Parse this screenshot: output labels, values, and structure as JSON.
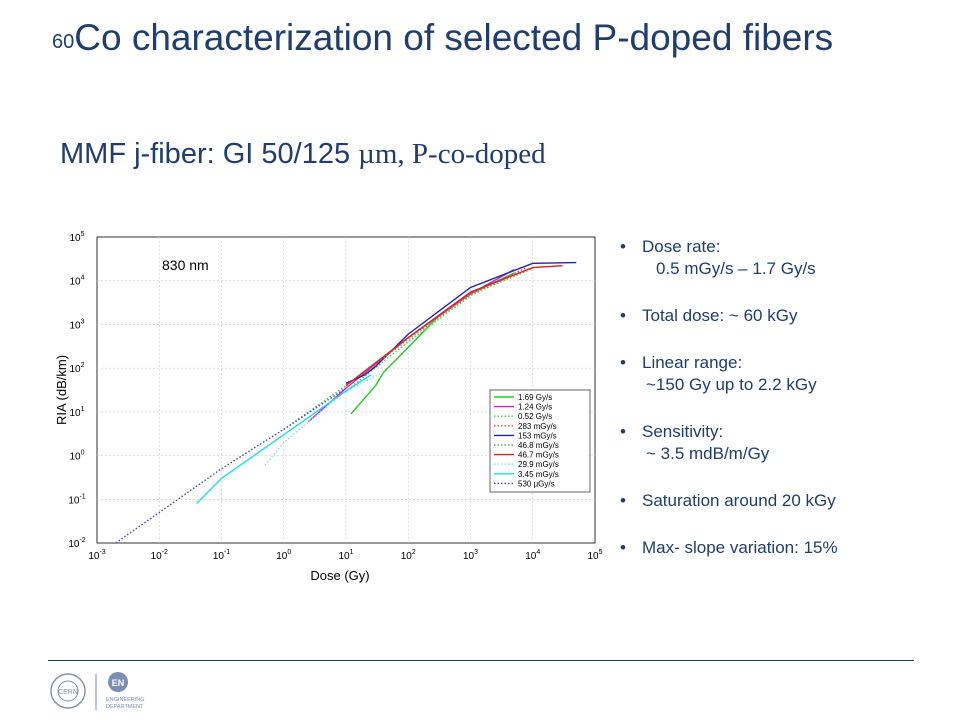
{
  "slide": {
    "title_sup": "60",
    "title_main": "Co characterization of selected P-doped fibers",
    "subtitle_a": "MMF j-fiber: GI 50/125 ",
    "subtitle_b": "µm, P-co-doped"
  },
  "bullets": [
    {
      "label": "Dose rate:",
      "sub": "0.5 mGy/s – 1.7 Gy/s"
    },
    {
      "label": "Total dose: ~ 60 kGy",
      "sub": ""
    },
    {
      "label": "Linear range:",
      "sub": "~150 Gy up to 2.2 kGy"
    },
    {
      "label": "Sensitivity:",
      "sub": "~ 3.5 mdB/m/Gy"
    },
    {
      "label": "Saturation around 20 kGy",
      "sub": ""
    },
    {
      "label": "Max- slope variation: 15%",
      "sub": ""
    }
  ],
  "logos": {
    "cern": "CERN",
    "dept_line1": "ENGINEERING",
    "dept_line2": "DEPARTMENT",
    "en": "EN"
  },
  "chart_data": {
    "type": "line",
    "scale": "log-log",
    "annotation": "830 nm",
    "xlabel": "Dose (Gy)",
    "ylabel": "RIA (dB/km)",
    "xlim_exp": [
      -3,
      5
    ],
    "ylim_exp": [
      -2,
      5
    ],
    "x_ticks": [
      "-3",
      "-2",
      "-1",
      "0",
      "1",
      "2",
      "3",
      "4",
      "5"
    ],
    "y_ticks": [
      "-2",
      "-1",
      "0",
      "1",
      "2",
      "3",
      "4",
      "5"
    ],
    "grid": true,
    "legend_position": "bottom-right",
    "series": [
      {
        "name": "1.69 Gy/s",
        "color": "#22cc22",
        "style": "solid",
        "points": [
          [
            12,
            9
          ],
          [
            30,
            40
          ],
          [
            40,
            80
          ],
          [
            100,
            300
          ],
          [
            300,
            1500
          ],
          [
            1000,
            5000
          ],
          [
            5000,
            15000
          ]
        ]
      },
      {
        "name": "1.24 Gy/s",
        "color": "#cc22cc",
        "style": "solid",
        "points": [
          [
            2.5,
            6
          ],
          [
            10,
            35
          ],
          [
            100,
            500
          ],
          [
            1000,
            5000
          ],
          [
            5000,
            18000
          ]
        ]
      },
      {
        "name": "0.52 Gy/s",
        "color": "#44cc44",
        "style": "dotted",
        "points": [
          [
            10,
            30
          ],
          [
            100,
            400
          ],
          [
            1000,
            4500
          ],
          [
            6000,
            16000
          ]
        ]
      },
      {
        "name": "283 mGy/s",
        "color": "#ee4444",
        "style": "dotted",
        "points": [
          [
            10,
            40
          ],
          [
            100,
            500
          ],
          [
            1000,
            5000
          ],
          [
            8000,
            20000
          ]
        ]
      },
      {
        "name": "153 mGy/s",
        "color": "#2222aa",
        "style": "solid",
        "points": [
          [
            10,
            45
          ],
          [
            20,
            70
          ],
          [
            30,
            110
          ],
          [
            100,
            600
          ],
          [
            1000,
            7000
          ],
          [
            10000,
            25000
          ],
          [
            50000,
            26000
          ]
        ]
      },
      {
        "name": "46.8 mGy/s",
        "color": "#55bb55",
        "style": "dotted",
        "points": [
          [
            1,
            4
          ],
          [
            10,
            40
          ],
          [
            100,
            450
          ],
          [
            1000,
            4800
          ],
          [
            10000,
            19000
          ]
        ]
      },
      {
        "name": "46.7 mGy/s",
        "color": "#dd2222",
        "style": "solid",
        "points": [
          [
            10,
            40
          ],
          [
            100,
            500
          ],
          [
            1000,
            5500
          ],
          [
            10000,
            20000
          ],
          [
            30000,
            22000
          ]
        ]
      },
      {
        "name": "29.9 mGy/s",
        "color": "#88ddee",
        "style": "dotted",
        "points": [
          [
            0.5,
            0.6
          ],
          [
            1,
            2
          ],
          [
            10,
            30
          ],
          [
            40,
            80
          ]
        ]
      },
      {
        "name": "3.45 mGy/s",
        "color": "#22dddd",
        "style": "solid",
        "points": [
          [
            0.04,
            0.08
          ],
          [
            0.1,
            0.3
          ],
          [
            1,
            3
          ],
          [
            10,
            30
          ],
          [
            25,
            70
          ]
        ]
      },
      {
        "name": "530 µGy/s",
        "color": "#4444cc",
        "style": "dotted",
        "points": [
          [
            0.002,
            0.01
          ],
          [
            0.01,
            0.05
          ],
          [
            0.1,
            0.5
          ],
          [
            1,
            4
          ],
          [
            10,
            35
          ]
        ]
      }
    ]
  }
}
